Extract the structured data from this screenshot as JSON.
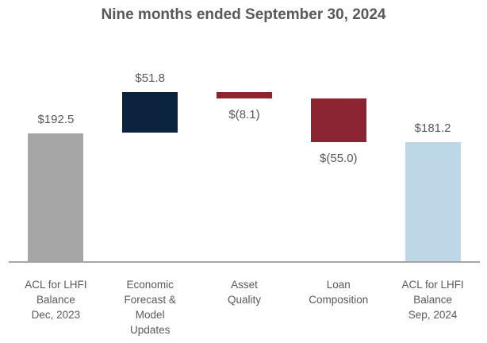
{
  "chart_data": {
    "type": "waterfall",
    "title": "Nine months ended September 30, 2024",
    "text_color": "#595959",
    "axis_line_color": "#a6a6a6",
    "grid": false,
    "y_axis_min": 30,
    "start_total": 192.5,
    "end_total": 181.2,
    "bars": [
      {
        "category": "ACL for LHFI Balance Dec, 2023",
        "category_lines": [
          "ACL for LHFI",
          "Balance",
          "Dec, 2023"
        ],
        "value": 192.5,
        "display_value": "$192.5",
        "kind": "total",
        "color": "#a6a6a6",
        "value_label_position": "above"
      },
      {
        "category": "Economic Forecast & Model Updates",
        "category_lines": [
          "Economic",
          "Forecast &",
          "Model",
          "Updates"
        ],
        "value": 51.8,
        "display_value": "$51.8",
        "kind": "increase",
        "color": "#0c2340",
        "value_label_position": "above"
      },
      {
        "category": "Asset Quality",
        "category_lines": [
          "Asset",
          "Quality"
        ],
        "value": -8.1,
        "display_value": "$(8.1)",
        "kind": "decrease",
        "color": "#8b2533",
        "value_label_position": "below"
      },
      {
        "category": "Loan Composition",
        "category_lines": [
          "Loan",
          "Composition"
        ],
        "value": -55.0,
        "display_value": "$(55.0)",
        "kind": "decrease",
        "color": "#8b2533",
        "value_label_position": "below"
      },
      {
        "category": "ACL for LHFI Balance Sep, 2024",
        "category_lines": [
          "ACL for LHFI",
          "Balance",
          "Sep, 2024"
        ],
        "value": 181.2,
        "display_value": "$181.2",
        "kind": "total",
        "color": "#bdd7e6",
        "value_label_position": "above"
      }
    ]
  }
}
